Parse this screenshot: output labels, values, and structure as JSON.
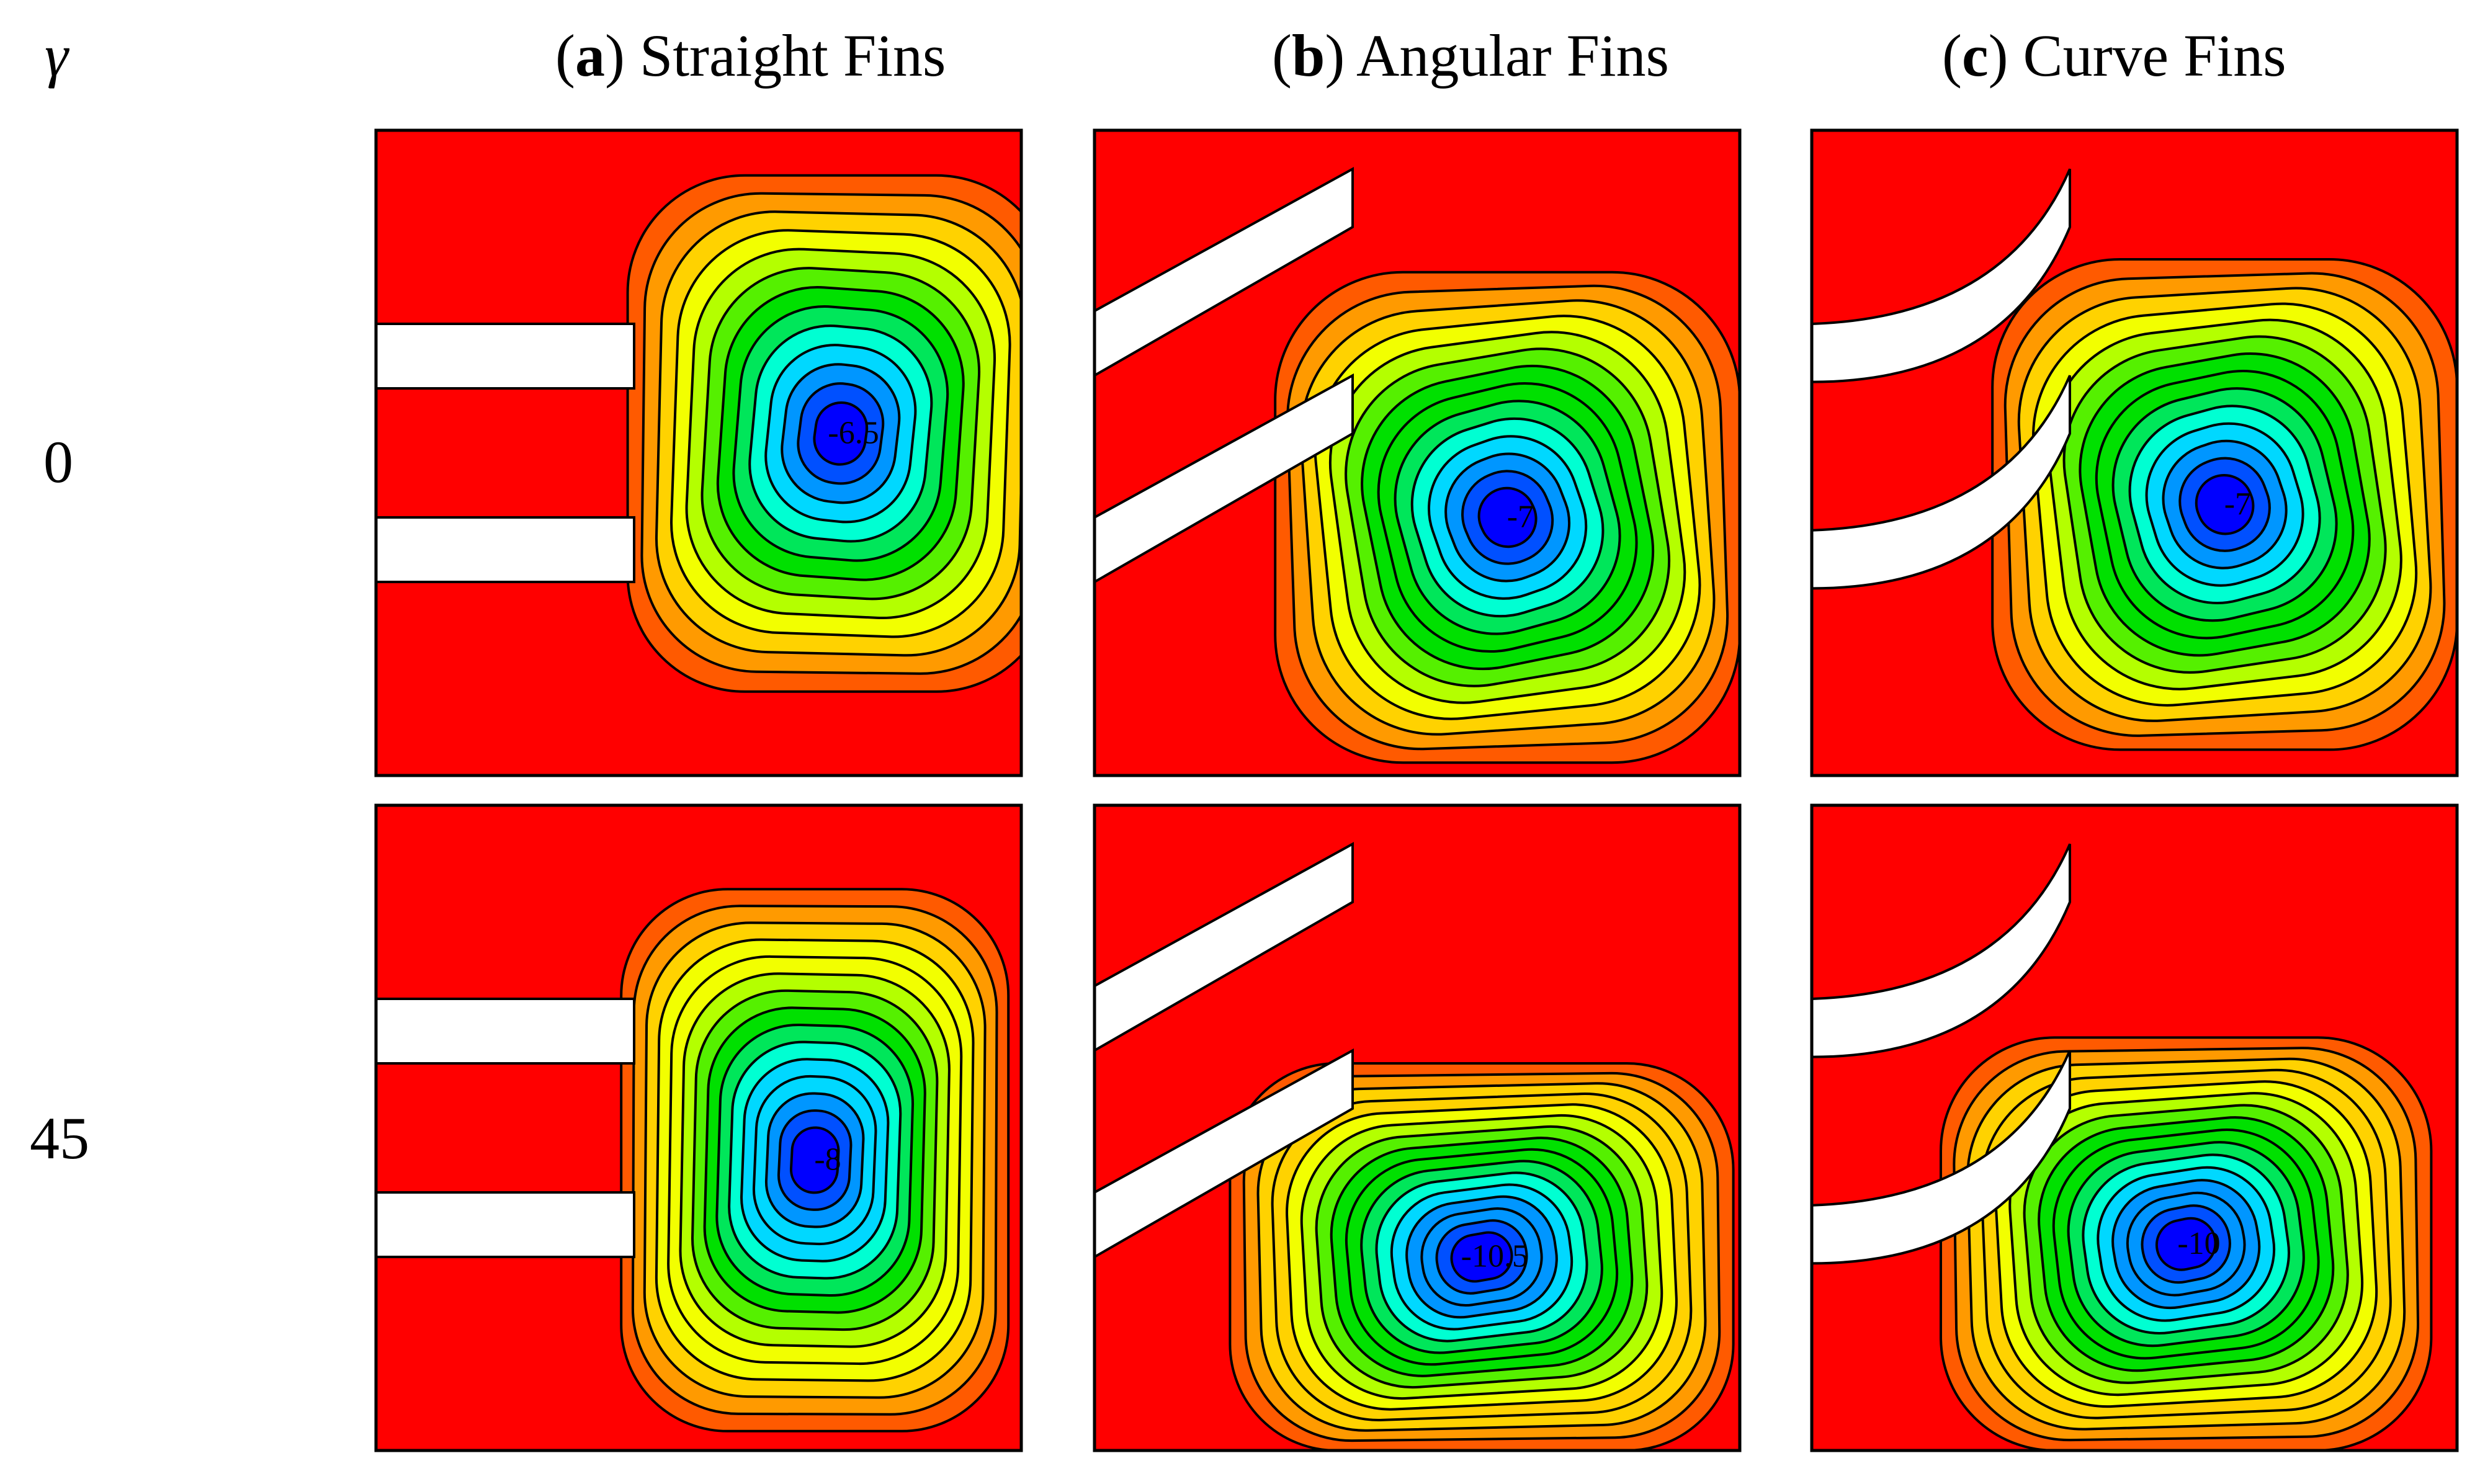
{
  "row_header": "γ",
  "columns": [
    {
      "letter": "a",
      "title": "Straight Fins"
    },
    {
      "letter": "b",
      "title": "Angular Fins"
    },
    {
      "letter": "c",
      "title": "Curve Fins"
    }
  ],
  "rows": [
    {
      "gamma": "0",
      "panel_labels": [
        "-6.5",
        "-7",
        "-7"
      ]
    },
    {
      "gamma": "45",
      "panel_labels": [
        "-8",
        "-10.5",
        "-10"
      ]
    }
  ],
  "colors": {
    "background": "#ffffff",
    "fin": "#ffffff",
    "contour_line": "#000000",
    "outer_fill": "#ff0000",
    "colormap": [
      "#ff0000",
      "#ff5a00",
      "#ff9a00",
      "#ffd200",
      "#f2ff00",
      "#b4ff00",
      "#55f000",
      "#00e000",
      "#00e65a",
      "#00ffd2",
      "#00d8ff",
      "#0096ff",
      "#0050ff",
      "#0000ff"
    ]
  }
}
